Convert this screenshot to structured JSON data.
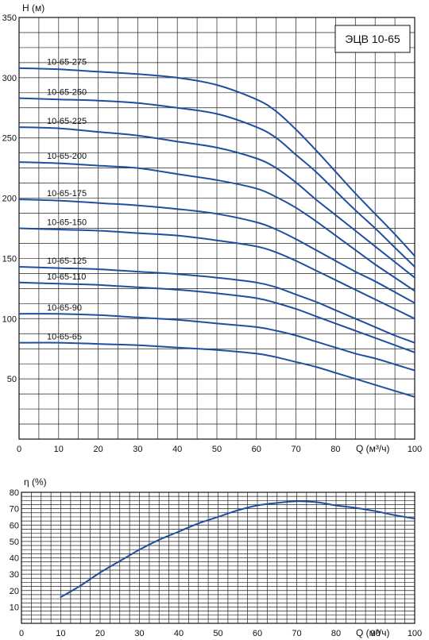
{
  "chart_data": [
    {
      "type": "line",
      "title": "ЭЦВ 10-65",
      "ylabel": "H (м)",
      "xlabel": "Q (м³/ч)",
      "xlim": [
        0,
        100
      ],
      "ylim": [
        0,
        350
      ],
      "xticks": [
        0,
        10,
        20,
        30,
        40,
        50,
        60,
        70,
        80,
        100
      ],
      "yticks": [
        50,
        100,
        150,
        200,
        250,
        300,
        350
      ],
      "grid": true,
      "x": [
        0,
        10,
        20,
        30,
        40,
        50,
        60,
        65,
        70,
        75,
        80,
        85,
        90,
        95,
        100
      ],
      "series": [
        {
          "name": "10-65-275",
          "values": [
            308,
            307,
            305,
            303,
            300,
            294,
            282,
            272,
            257,
            240,
            222,
            204,
            187,
            170,
            152
          ]
        },
        {
          "name": "10-65-250",
          "values": [
            283,
            282,
            281,
            279,
            275,
            270,
            259,
            250,
            236,
            222,
            206,
            190,
            175,
            159,
            143
          ]
        },
        {
          "name": "10-65-225",
          "values": [
            259,
            258,
            255,
            252,
            247,
            242,
            233,
            225,
            213,
            199,
            186,
            173,
            160,
            147,
            134
          ]
        },
        {
          "name": "10-65-200",
          "values": [
            230,
            229,
            227,
            225,
            220,
            215,
            208,
            201,
            192,
            181,
            169,
            157,
            145,
            134,
            123
          ]
        },
        {
          "name": "10-65-175",
          "values": [
            199,
            198,
            196,
            194,
            191,
            187,
            180,
            174,
            166,
            157,
            148,
            139,
            131,
            122,
            113
          ]
        },
        {
          "name": "10-65-150",
          "values": [
            175,
            174,
            173,
            171,
            169,
            165,
            160,
            155,
            148,
            140,
            132,
            124,
            116,
            108,
            100
          ]
        },
        {
          "name": "10-65-125",
          "values": [
            143,
            142,
            141,
            139,
            137,
            134,
            130,
            126,
            120,
            114,
            107,
            100,
            93,
            86,
            80
          ]
        },
        {
          "name": "10-65-110",
          "values": [
            130,
            129,
            128,
            126,
            124,
            121,
            117,
            113,
            108,
            102,
            96,
            90,
            84,
            78,
            72
          ]
        },
        {
          "name": "10-65-90",
          "values": [
            104,
            104,
            103,
            101,
            99,
            96,
            93,
            90,
            86,
            81,
            76,
            71,
            67,
            62,
            57
          ]
        },
        {
          "name": "10-65-65",
          "values": [
            80,
            80,
            79,
            78,
            76,
            74,
            71,
            68,
            64,
            60,
            55,
            50,
            45,
            40,
            35
          ]
        }
      ]
    },
    {
      "type": "line",
      "title": "",
      "ylabel": "η (%)",
      "xlabel": "Q (м³/ч)",
      "xlim": [
        0,
        100
      ],
      "ylim": [
        0,
        80
      ],
      "xticks": [
        0,
        10,
        20,
        30,
        40,
        50,
        60,
        70,
        80,
        90,
        100
      ],
      "yticks": [
        10,
        20,
        30,
        40,
        50,
        60,
        70,
        80
      ],
      "grid": true,
      "x": [
        10,
        15,
        20,
        25,
        30,
        35,
        40,
        45,
        50,
        55,
        60,
        65,
        70,
        75,
        80,
        85,
        90,
        95,
        100
      ],
      "series": [
        {
          "name": "",
          "values": [
            16,
            23,
            31,
            38,
            45,
            51,
            56,
            61,
            65,
            69,
            72,
            73.5,
            74.5,
            74,
            72,
            70.5,
            68.5,
            66,
            64
          ]
        }
      ]
    }
  ],
  "colors": {
    "curve": "#1f4fa0",
    "grid": "#222222",
    "frame": "#111111"
  }
}
